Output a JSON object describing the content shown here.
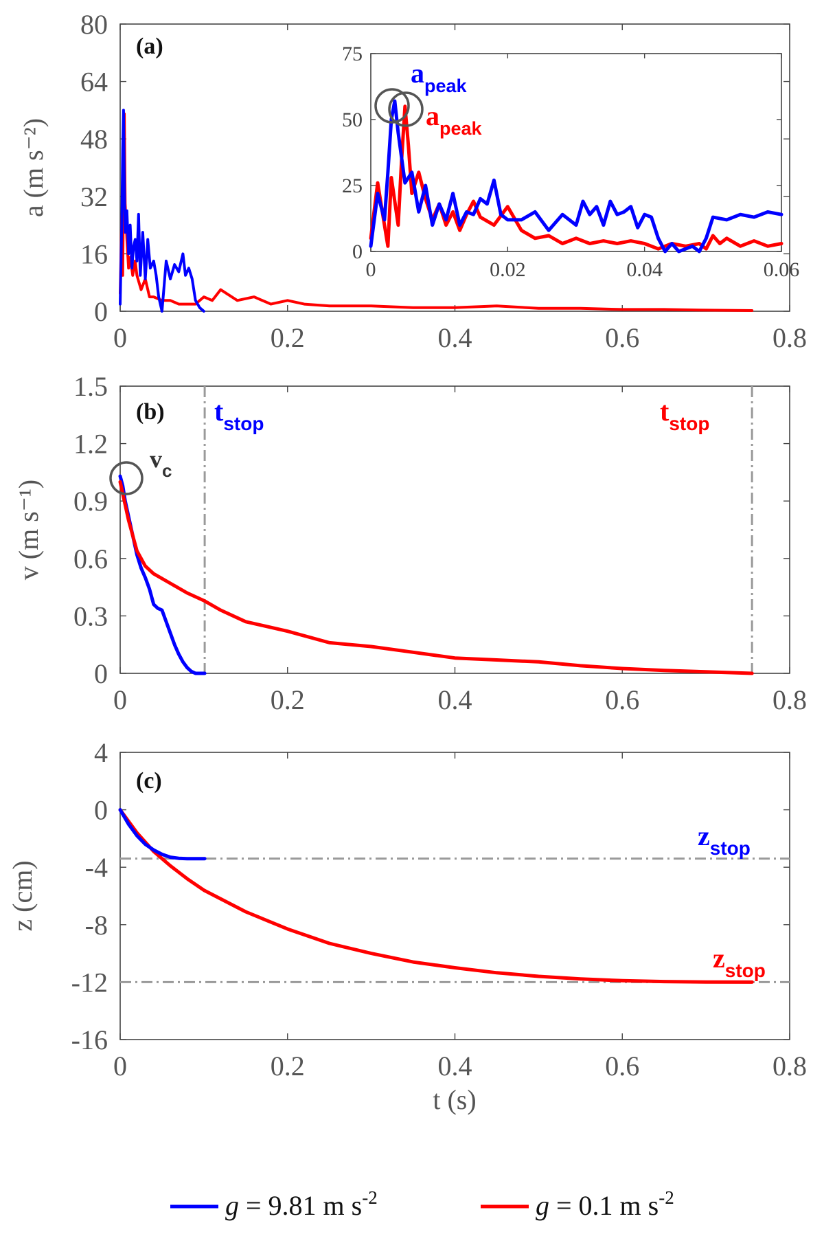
{
  "chart_data": [
    {
      "type": "line",
      "panel_label": "(a)",
      "ylabel": "a (m s⁻²)",
      "xlim": [
        0,
        0.8
      ],
      "ylim": [
        0,
        80
      ],
      "xticks": [
        "0",
        "0.2",
        "0.4",
        "0.6",
        "0.8"
      ],
      "yticks": [
        "0",
        "16",
        "32",
        "48",
        "64",
        "80"
      ],
      "series": [
        {
          "name": "g = 9.81 m s⁻²",
          "color": "#0000ff",
          "x": [
            0.0,
            0.002,
            0.003,
            0.004,
            0.005,
            0.006,
            0.008,
            0.01,
            0.012,
            0.014,
            0.016,
            0.018,
            0.02,
            0.022,
            0.024,
            0.027,
            0.03,
            0.033,
            0.036,
            0.04,
            0.043,
            0.046,
            0.05,
            0.055,
            0.06,
            0.065,
            0.07,
            0.075,
            0.078,
            0.082,
            0.086,
            0.09,
            0.095,
            0.1
          ],
          "y": [
            2,
            25,
            45,
            56,
            35,
            22,
            28,
            16,
            24,
            12,
            18,
            20,
            14,
            27,
            10,
            22,
            9,
            20,
            12,
            14,
            10,
            4,
            0,
            14,
            9,
            13,
            11,
            16,
            10,
            12,
            9,
            3,
            1,
            0
          ]
        },
        {
          "name": "g = 0.1 m s⁻²",
          "color": "#ff0000",
          "x": [
            0.0,
            0.002,
            0.003,
            0.005,
            0.006,
            0.008,
            0.01,
            0.012,
            0.015,
            0.018,
            0.02,
            0.025,
            0.03,
            0.035,
            0.04,
            0.05,
            0.06,
            0.07,
            0.08,
            0.09,
            0.1,
            0.11,
            0.12,
            0.14,
            0.16,
            0.18,
            0.2,
            0.22,
            0.25,
            0.3,
            0.35,
            0.4,
            0.45,
            0.5,
            0.55,
            0.6,
            0.65,
            0.7,
            0.755
          ],
          "y": [
            5,
            27,
            10,
            55,
            30,
            20,
            12,
            15,
            10,
            14,
            10,
            6,
            9,
            4,
            4,
            3,
            3,
            2,
            2,
            2,
            4,
            3,
            6,
            3,
            4,
            2,
            3,
            2,
            1.5,
            1.5,
            1,
            1,
            1.5,
            0.8,
            0.8,
            0.5,
            0.5,
            0.3,
            0.2
          ]
        }
      ],
      "inset": {
        "xlim": [
          0,
          0.06
        ],
        "ylim": [
          0,
          75
        ],
        "xticks": [
          "0",
          "0.02",
          "0.04",
          "0.06"
        ],
        "yticks": [
          "0",
          "25",
          "50",
          "75"
        ],
        "annotation_blue": "a",
        "annotation_blue_sub": "peak",
        "annotation_red": "a",
        "annotation_red_sub": "peak",
        "series": [
          {
            "name": "blue",
            "color": "#0000ff",
            "x": [
              0.0,
              0.001,
              0.002,
              0.0025,
              0.003,
              0.0035,
              0.004,
              0.005,
              0.006,
              0.007,
              0.008,
              0.009,
              0.01,
              0.011,
              0.012,
              0.013,
              0.014,
              0.015,
              0.016,
              0.017,
              0.018,
              0.019,
              0.02,
              0.022,
              0.024,
              0.026,
              0.028,
              0.03,
              0.031,
              0.032,
              0.033,
              0.034,
              0.035,
              0.036,
              0.037,
              0.038,
              0.039,
              0.04,
              0.041,
              0.042,
              0.043,
              0.044,
              0.045,
              0.046,
              0.047,
              0.048,
              0.049,
              0.05,
              0.052,
              0.054,
              0.056,
              0.058,
              0.06
            ],
            "y": [
              2,
              22,
              12,
              30,
              50,
              57,
              45,
              26,
              30,
              15,
              25,
              10,
              18,
              12,
              22,
              10,
              15,
              14,
              20,
              18,
              27,
              14,
              12,
              12,
              15,
              8,
              14,
              10,
              19,
              14,
              17,
              10,
              19,
              14,
              15,
              17,
              9,
              14,
              13,
              5,
              0,
              3,
              0,
              1,
              2,
              0,
              5,
              13,
              12,
              14,
              13,
              15,
              14
            ]
          },
          {
            "name": "red",
            "color": "#ff0000",
            "x": [
              0.0,
              0.001,
              0.002,
              0.0025,
              0.003,
              0.004,
              0.0045,
              0.005,
              0.0055,
              0.006,
              0.007,
              0.008,
              0.009,
              0.01,
              0.011,
              0.012,
              0.013,
              0.014,
              0.015,
              0.016,
              0.018,
              0.02,
              0.022,
              0.024,
              0.026,
              0.028,
              0.03,
              0.032,
              0.034,
              0.036,
              0.038,
              0.04,
              0.042,
              0.044,
              0.046,
              0.048,
              0.049,
              0.05,
              0.051,
              0.052,
              0.054,
              0.056,
              0.058,
              0.06
            ],
            "y": [
              5,
              26,
              10,
              2,
              28,
              10,
              35,
              55,
              40,
              22,
              30,
              20,
              12,
              18,
              10,
              15,
              8,
              14,
              19,
              13,
              10,
              17,
              8,
              5,
              6,
              3,
              5,
              3,
              4,
              3,
              4,
              3,
              1,
              3,
              2,
              3,
              1,
              6,
              3,
              5,
              2,
              4,
              2,
              3
            ]
          }
        ]
      }
    },
    {
      "type": "line",
      "panel_label": "(b)",
      "ylabel": "v (m s⁻¹)",
      "xlim": [
        0,
        0.8
      ],
      "ylim": [
        0,
        1.5
      ],
      "xticks": [
        "0",
        "0.2",
        "0.4",
        "0.6",
        "0.8"
      ],
      "yticks": [
        "0",
        "0.3",
        "0.6",
        "0.9",
        "1.2",
        "1.5"
      ],
      "annotation_vc": "v",
      "annotation_vc_sub": "c",
      "annotation_tstop_blue": "t",
      "annotation_tstop_blue_sub": "stop",
      "annotation_tstop_red": "t",
      "annotation_tstop_red_sub": "stop",
      "tstop_blue": 0.101,
      "tstop_red": 0.755,
      "series": [
        {
          "name": "blue",
          "color": "#0000ff",
          "x": [
            0.0,
            0.003,
            0.006,
            0.01,
            0.015,
            0.02,
            0.025,
            0.03,
            0.035,
            0.04,
            0.045,
            0.05,
            0.055,
            0.06,
            0.065,
            0.07,
            0.075,
            0.08,
            0.085,
            0.09,
            0.095,
            0.101
          ],
          "y": [
            1.03,
            0.98,
            0.9,
            0.82,
            0.72,
            0.62,
            0.55,
            0.5,
            0.44,
            0.36,
            0.34,
            0.33,
            0.27,
            0.21,
            0.15,
            0.1,
            0.06,
            0.03,
            0.01,
            0.0,
            0.0,
            0.0
          ]
        },
        {
          "name": "red",
          "color": "#ff0000",
          "x": [
            0.0,
            0.005,
            0.01,
            0.015,
            0.02,
            0.03,
            0.04,
            0.06,
            0.08,
            0.1,
            0.12,
            0.15,
            0.2,
            0.25,
            0.3,
            0.35,
            0.4,
            0.45,
            0.5,
            0.55,
            0.6,
            0.65,
            0.7,
            0.755
          ],
          "y": [
            1.0,
            0.9,
            0.8,
            0.72,
            0.64,
            0.56,
            0.52,
            0.47,
            0.42,
            0.38,
            0.33,
            0.27,
            0.22,
            0.16,
            0.14,
            0.11,
            0.08,
            0.07,
            0.06,
            0.04,
            0.025,
            0.015,
            0.008,
            0.0
          ]
        }
      ]
    },
    {
      "type": "line",
      "panel_label": "(c)",
      "ylabel": "z (cm)",
      "xlabel": "t (s)",
      "xlim": [
        0,
        0.8
      ],
      "ylim": [
        -16,
        4
      ],
      "xticks": [
        "0",
        "0.2",
        "0.4",
        "0.6",
        "0.8"
      ],
      "yticks": [
        "-16",
        "-12",
        "-8",
        "-4",
        "0",
        "4"
      ],
      "annotation_zstop_blue": "z",
      "annotation_zstop_blue_sub": "stop",
      "annotation_zstop_red": "z",
      "annotation_zstop_red_sub": "stop",
      "zstop_blue": -3.4,
      "zstop_red": -12.0,
      "series": [
        {
          "name": "blue",
          "color": "#0000ff",
          "x": [
            0.0,
            0.005,
            0.01,
            0.02,
            0.03,
            0.04,
            0.05,
            0.06,
            0.07,
            0.08,
            0.09,
            0.101
          ],
          "y": [
            0.0,
            -0.5,
            -1.0,
            -1.8,
            -2.4,
            -2.8,
            -3.1,
            -3.3,
            -3.38,
            -3.4,
            -3.4,
            -3.4
          ]
        },
        {
          "name": "red",
          "color": "#ff0000",
          "x": [
            0.0,
            0.01,
            0.02,
            0.04,
            0.06,
            0.08,
            0.1,
            0.15,
            0.2,
            0.25,
            0.3,
            0.35,
            0.4,
            0.45,
            0.5,
            0.55,
            0.6,
            0.65,
            0.7,
            0.755
          ],
          "y": [
            0.0,
            -0.8,
            -1.6,
            -2.9,
            -3.9,
            -4.8,
            -5.6,
            -7.1,
            -8.3,
            -9.3,
            -10.0,
            -10.6,
            -11.0,
            -11.35,
            -11.6,
            -11.78,
            -11.9,
            -11.96,
            -11.99,
            -12.0
          ]
        }
      ]
    }
  ],
  "legend": [
    {
      "symbol": "g",
      "text": " = 9.81 m s",
      "sup": "-2",
      "color": "#0000ff"
    },
    {
      "symbol": "g",
      "text": " = 0.1 m s",
      "sup": "-2",
      "color": "#ff0000"
    }
  ]
}
